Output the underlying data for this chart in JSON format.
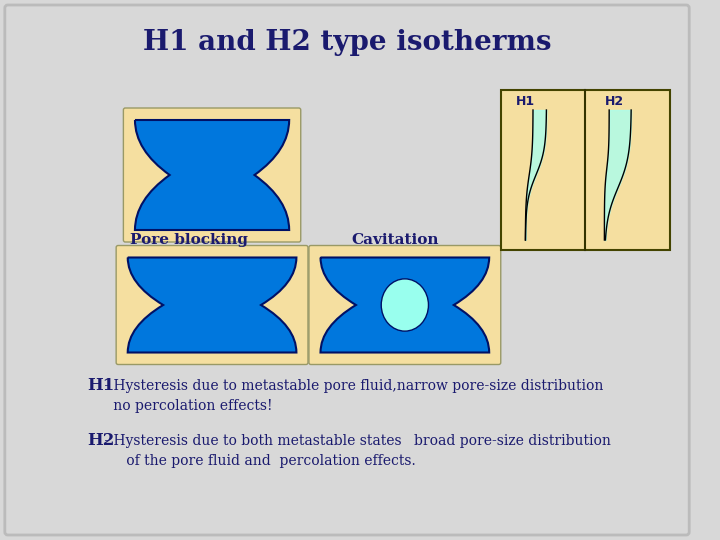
{
  "title": "H1 and H2 type isotherms",
  "bg_color": "#d8d8d8",
  "border_color": "#aaaaaa",
  "tan_color": "#f5dfa0",
  "blue_color": "#0077dd",
  "dark_blue": "#003399",
  "cyan_color": "#aaffee",
  "text_color": "#1a1a6e",
  "title_fontsize": 20,
  "label_fontsize": 11,
  "desc_fontsize": 10,
  "pore_blocking_label": "Pore blocking",
  "cavitation_label": "Cavitation",
  "h1_label": "H1",
  "h2_label": "H2",
  "h1_desc_line1": " - Hysteresis due to metastable pore fluid,narrow pore-size distribution",
  "h1_desc_line2": "      no percolation effects!",
  "h2_desc_line1": " - Hysteresis due to both metastable states",
  "h2_desc_line2": "      of the pore fluid and  percolation effects.",
  "h2_desc_right": "broad pore-size distribution"
}
